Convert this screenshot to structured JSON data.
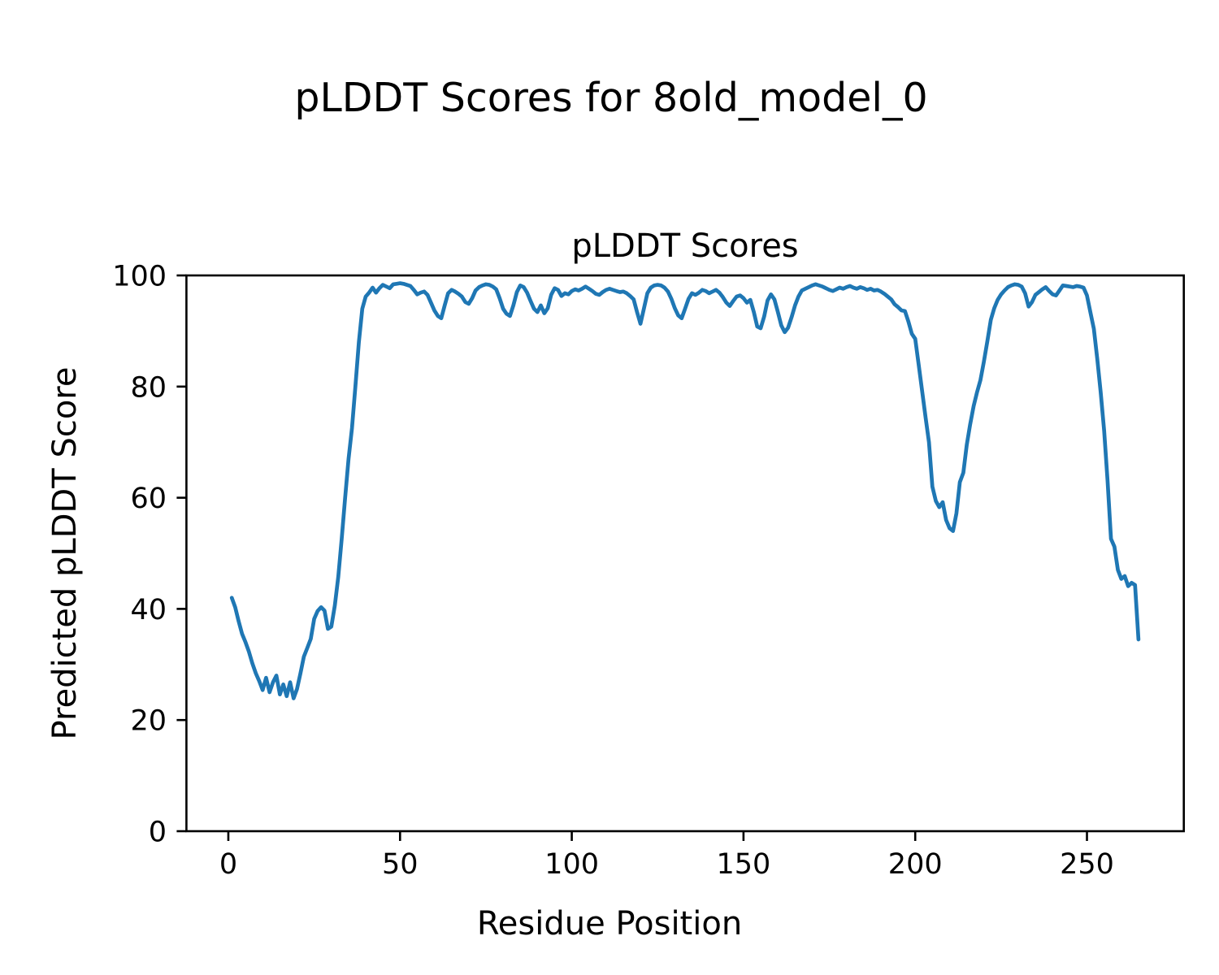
{
  "figure_title": "pLDDT Scores for 8old_model_0",
  "chart_data": {
    "type": "line",
    "title": "pLDDT Scores",
    "xlabel": "Residue Position",
    "ylabel": "Predicted pLDDT Score",
    "series_name": "pLDDT per residue",
    "line_color": "#1f77b4",
    "background_color": "#ffffff",
    "grid": false,
    "legend": false,
    "xlim": [
      -12.2,
      278.2
    ],
    "ylim": [
      0,
      100
    ],
    "xticks": [
      0,
      50,
      100,
      150,
      200,
      250
    ],
    "yticks": [
      0,
      20,
      40,
      60,
      80,
      100
    ],
    "x_start": 1,
    "x_step": 1,
    "n_points": 265,
    "y": [
      42.0,
      40.3,
      37.8,
      35.5,
      34.0,
      32.3,
      30.2,
      28.4,
      27.0,
      25.4,
      27.6,
      25.0,
      26.8,
      28.0,
      24.6,
      26.4,
      24.3,
      26.8,
      23.9,
      25.6,
      28.4,
      31.4,
      33.0,
      34.6,
      38.2,
      39.6,
      40.3,
      39.7,
      36.4,
      36.8,
      40.6,
      45.7,
      52.5,
      60.0,
      67.0,
      72.5,
      80.0,
      88.0,
      94.0,
      96.2,
      96.9,
      97.8,
      96.9,
      97.7,
      98.3,
      98.0,
      97.7,
      98.4,
      98.5,
      98.6,
      98.5,
      98.3,
      98.1,
      97.4,
      96.6,
      96.9,
      97.1,
      96.5,
      95.1,
      93.7,
      92.7,
      92.3,
      94.6,
      96.8,
      97.4,
      97.1,
      96.7,
      96.2,
      95.2,
      94.9,
      95.9,
      97.3,
      97.9,
      98.2,
      98.4,
      98.3,
      98.0,
      97.5,
      95.9,
      94.0,
      93.1,
      92.7,
      94.6,
      97.0,
      98.2,
      97.9,
      96.9,
      95.4,
      94.0,
      93.4,
      94.6,
      93.2,
      94.1,
      96.5,
      97.7,
      97.4,
      96.3,
      96.8,
      96.6,
      97.2,
      97.5,
      97.3,
      97.6,
      98.0,
      97.6,
      97.2,
      96.7,
      96.5,
      97.0,
      97.4,
      97.6,
      97.4,
      97.2,
      97.0,
      97.1,
      96.8,
      96.3,
      95.7,
      93.4,
      91.3,
      94.0,
      96.8,
      97.8,
      98.2,
      98.3,
      98.2,
      97.8,
      97.1,
      95.8,
      94.1,
      92.8,
      92.3,
      94.0,
      95.8,
      96.8,
      96.5,
      96.9,
      97.4,
      97.2,
      96.8,
      97.1,
      97.4,
      96.9,
      96.1,
      95.1,
      94.5,
      95.4,
      96.2,
      96.4,
      95.9,
      95.1,
      95.6,
      93.4,
      90.8,
      90.5,
      92.6,
      95.5,
      96.6,
      95.7,
      93.4,
      91.0,
      89.8,
      90.6,
      92.5,
      94.6,
      96.2,
      97.3,
      97.6,
      97.9,
      98.2,
      98.4,
      98.2,
      98.0,
      97.7,
      97.4,
      97.2,
      97.5,
      97.8,
      97.6,
      97.9,
      98.1,
      97.8,
      97.6,
      97.9,
      97.7,
      97.4,
      97.6,
      97.3,
      97.4,
      97.1,
      96.7,
      96.2,
      95.7,
      94.8,
      94.3,
      93.7,
      93.6,
      91.7,
      89.5,
      88.6,
      84.0,
      79.2,
      74.5,
      70.0,
      62.0,
      59.4,
      58.3,
      59.2,
      56.0,
      54.5,
      54.0,
      57.2,
      62.8,
      64.5,
      69.5,
      73.2,
      76.5,
      79.0,
      81.2,
      84.5,
      88.2,
      92.0,
      94.1,
      95.6,
      96.6,
      97.3,
      97.9,
      98.2,
      98.4,
      98.3,
      98.0,
      96.8,
      94.4,
      95.2,
      96.5,
      97.0,
      97.5,
      97.9,
      97.2,
      96.6,
      96.4,
      97.3,
      98.2,
      98.1,
      98.0,
      97.9,
      98.1,
      98.0,
      97.8,
      96.4,
      93.4,
      90.4,
      85.0,
      79.0,
      72.0,
      63.0,
      52.6,
      51.2,
      47.0,
      45.4,
      45.9,
      44.1,
      44.7,
      44.3,
      34.5
    ]
  }
}
